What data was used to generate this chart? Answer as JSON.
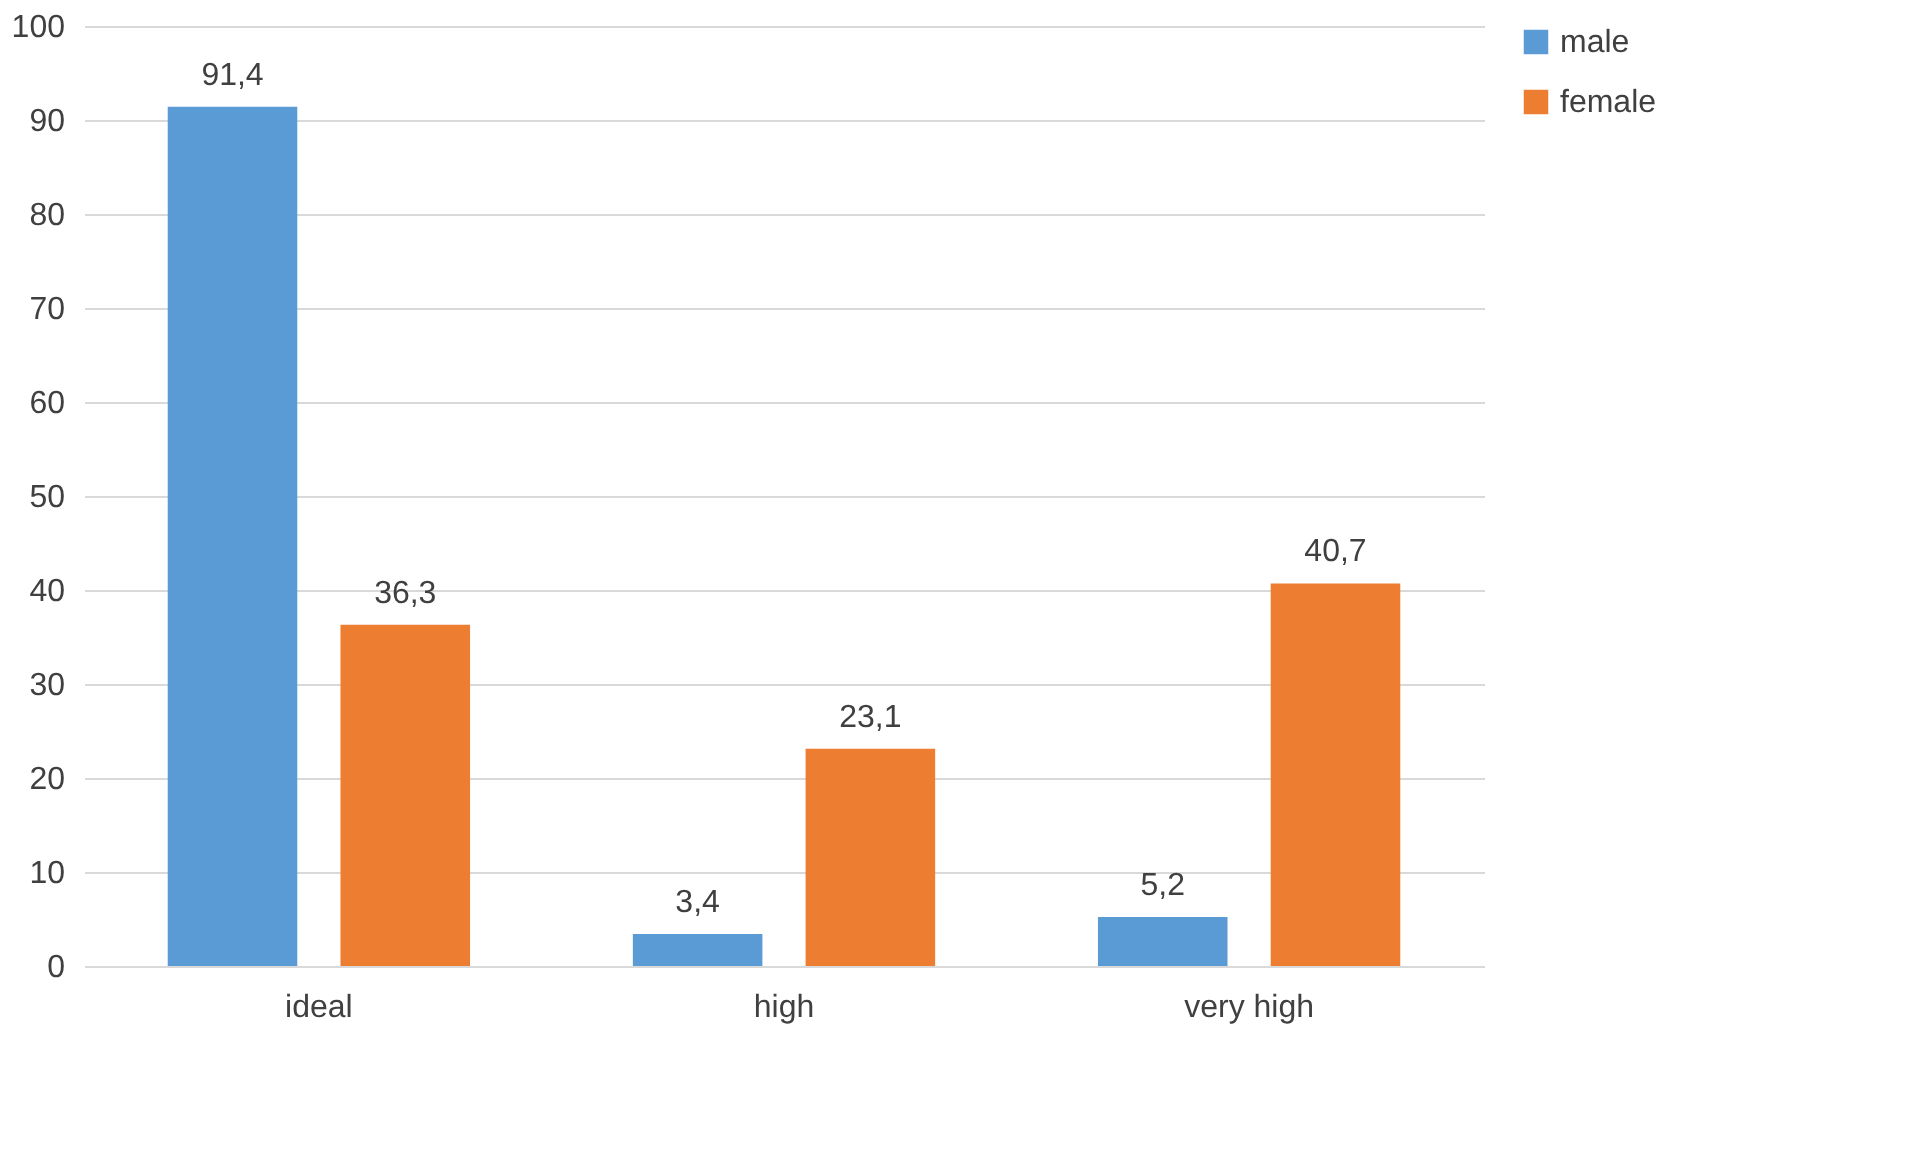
{
  "chart_data": {
    "type": "bar",
    "categories": [
      "ideal",
      "high",
      "very high"
    ],
    "series": [
      {
        "name": "male",
        "color": "#5b9bd5",
        "values": [
          91.4,
          3.4,
          5.2
        ],
        "value_labels": [
          "91,4",
          "3,4",
          "5,2"
        ]
      },
      {
        "name": "female",
        "color": "#ed7d31",
        "values": [
          36.3,
          23.1,
          40.7
        ],
        "value_labels": [
          "36,3",
          "23,1",
          "40,7"
        ]
      }
    ],
    "ylim": [
      0,
      100
    ],
    "yticks": [
      0,
      10,
      20,
      30,
      40,
      50,
      60,
      70,
      80,
      90,
      100
    ],
    "grid": "y",
    "legend": "right"
  }
}
